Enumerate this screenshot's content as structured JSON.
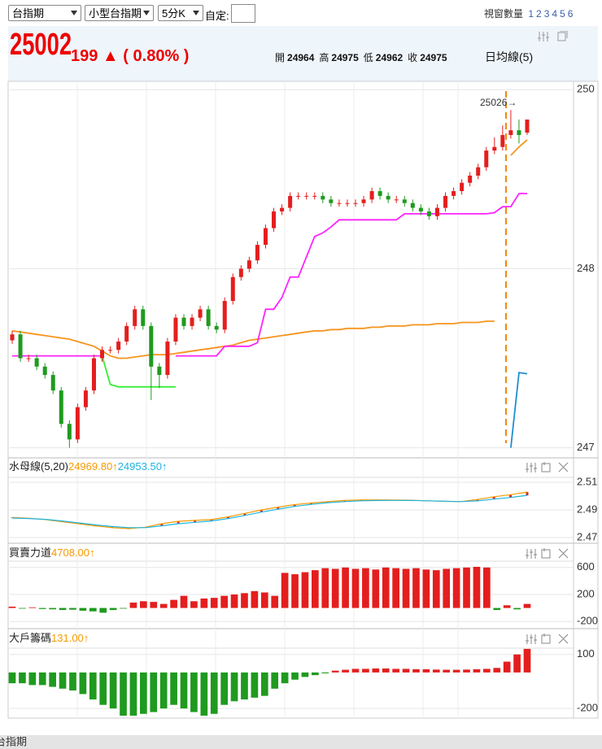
{
  "toolbar": {
    "selects": [
      "台指期",
      "小型台指期",
      "5分K"
    ],
    "custom_label": "自定:",
    "window_count_label": "視窗數量",
    "window_options": [
      1,
      2,
      3,
      4,
      5,
      6
    ]
  },
  "quote": {
    "price": 25002,
    "change": "199 ▲",
    "change_pct": "( 0.80% )",
    "ohlc": [
      {
        "label": "開",
        "value": 24964
      },
      {
        "label": "高",
        "value": 24975
      },
      {
        "label": "低",
        "value": 24962
      },
      {
        "label": "收",
        "value": 24975
      }
    ],
    "ma_label": "日均線(5)"
  },
  "bottom_tab": "台指期",
  "chart_data": [
    {
      "type": "candlestick",
      "annotation": "25026→",
      "up_color": "#e41e1e",
      "down_color": "#1f9a1f",
      "grid": true,
      "ylim": [
        24697,
        25007
      ],
      "yticks": [
        {
          "value": 25000,
          "label": "250"
        },
        {
          "value": 24850,
          "label": "248"
        },
        {
          "value": 24700,
          "label": "247"
        }
      ],
      "candles": [
        [
          24790,
          24798,
          24787,
          24795
        ],
        [
          24795,
          24798,
          24772,
          24775
        ],
        [
          24775,
          24778,
          24772,
          24775
        ],
        [
          24775,
          24778,
          24765,
          24768
        ],
        [
          24768,
          24771,
          24758,
          24761
        ],
        [
          24761,
          24764,
          24745,
          24748
        ],
        [
          24748,
          24751,
          24717,
          24720
        ],
        [
          24720,
          24723,
          24700,
          24707
        ],
        [
          24707,
          24737,
          24704,
          24734
        ],
        [
          24734,
          24751,
          24731,
          24748
        ],
        [
          24748,
          24778,
          24745,
          24775
        ],
        [
          24775,
          24785,
          24772,
          24782
        ],
        [
          24782,
          24785,
          24779,
          24782
        ],
        [
          24782,
          24792,
          24779,
          24789
        ],
        [
          24789,
          24805,
          24786,
          24802
        ],
        [
          24802,
          24819,
          24799,
          24816
        ],
        [
          24816,
          24819,
          24799,
          24802
        ],
        [
          24802,
          24805,
          24740,
          24768
        ],
        [
          24768,
          24771,
          24750,
          24761
        ],
        [
          24761,
          24792,
          24758,
          24789
        ],
        [
          24789,
          24812,
          24786,
          24809
        ],
        [
          24809,
          24812,
          24799,
          24802
        ],
        [
          24802,
          24812,
          24799,
          24809
        ],
        [
          24809,
          24819,
          24806,
          24816
        ],
        [
          24816,
          24819,
          24799,
          24802
        ],
        [
          24802,
          24805,
          24796,
          24799
        ],
        [
          24799,
          24826,
          24796,
          24823
        ],
        [
          24823,
          24846,
          24820,
          24843
        ],
        [
          24843,
          24853,
          24840,
          24850
        ],
        [
          24850,
          24860,
          24847,
          24857
        ],
        [
          24857,
          24873,
          24854,
          24870
        ],
        [
          24870,
          24887,
          24867,
          24884
        ],
        [
          24884,
          24901,
          24881,
          24898
        ],
        [
          24898,
          24904,
          24895,
          24901
        ],
        [
          24901,
          24914,
          24898,
          24911
        ],
        [
          24911,
          24914,
          24908,
          24911
        ],
        [
          24911,
          24914,
          24908,
          24911
        ],
        [
          24911,
          24914,
          24908,
          24911
        ],
        [
          24911,
          24914,
          24905,
          24908
        ],
        [
          24908,
          24911,
          24902,
          24905
        ],
        [
          24905,
          24908,
          24902,
          24905
        ],
        [
          24905,
          24908,
          24902,
          24905
        ],
        [
          24905,
          24908,
          24902,
          24905
        ],
        [
          24905,
          24911,
          24902,
          24908
        ],
        [
          24908,
          24918,
          24905,
          24915
        ],
        [
          24915,
          24918,
          24908,
          24911
        ],
        [
          24911,
          24914,
          24905,
          24908
        ],
        [
          24908,
          24911,
          24905,
          24908
        ],
        [
          24908,
          24911,
          24902,
          24905
        ],
        [
          24905,
          24908,
          24898,
          24901
        ],
        [
          24901,
          24904,
          24895,
          24898
        ],
        [
          24898,
          24901,
          24891,
          24894
        ],
        [
          24894,
          24904,
          24891,
          24901
        ],
        [
          24901,
          24914,
          24898,
          24911
        ],
        [
          24911,
          24918,
          24908,
          24915
        ],
        [
          24915,
          24925,
          24912,
          24922
        ],
        [
          24922,
          24931,
          24919,
          24928
        ],
        [
          24928,
          24938,
          24925,
          24935
        ],
        [
          24935,
          24952,
          24932,
          24949
        ],
        [
          24949,
          24960,
          24946,
          24952
        ],
        [
          24952,
          24970,
          24949,
          24962
        ],
        [
          24962,
          24983,
          24959,
          24966
        ],
        [
          24966,
          24975,
          24955,
          24962
        ],
        [
          24964,
          24975,
          24962,
          24975
        ]
      ],
      "lines": [
        {
          "color": "#f7941d",
          "values": [
            24798,
            24797,
            24796,
            24795,
            24794,
            24793,
            24792,
            24791,
            24789,
            24787,
            24785,
            24781,
            24777,
            24775,
            24775,
            24776,
            24777,
            24778,
            24778,
            24778,
            24779,
            24780,
            24781,
            24782,
            24783,
            24784,
            24785,
            24786,
            24788,
            24790,
            24791,
            24792,
            24793,
            24794,
            24795,
            24796,
            24797,
            24798,
            24798,
            24799,
            24799,
            24800,
            24800,
            24800,
            24801,
            24801,
            24802,
            24802,
            24802,
            24803,
            24803,
            24803,
            24804,
            24804,
            24804,
            24805,
            24805,
            24805,
            24806,
            24806,
            null,
            24945,
            24952,
            24958
          ]
        },
        {
          "color": "#ff22ff",
          "values": [
            24777,
            24777,
            24777,
            24777,
            24777,
            24777,
            24777,
            24777,
            24777,
            24777,
            24777,
            24777,
            null,
            null,
            null,
            null,
            null,
            null,
            null,
            null,
            24777,
            24777,
            24777,
            24777,
            24777,
            24777,
            24785,
            24785,
            24785,
            24785,
            24788,
            24816,
            24816,
            24826,
            24843,
            24843,
            24860,
            24877,
            24880,
            24885,
            24891,
            24891,
            24891,
            24891,
            24891,
            24891,
            24891,
            24891,
            24896,
            24896,
            24896,
            24896,
            24896,
            24896,
            24896,
            24896,
            24896,
            24896,
            24896,
            24897,
            24902,
            24902,
            24913,
            24913
          ]
        },
        {
          "color": "#33ee33",
          "values": [
            null,
            null,
            null,
            null,
            null,
            null,
            null,
            null,
            null,
            null,
            null,
            24777,
            24753,
            24751,
            24751,
            24751,
            24751,
            24751,
            24751,
            24751,
            24751,
            null,
            null,
            null,
            null,
            null,
            null,
            null,
            null,
            null,
            null,
            null,
            null,
            null,
            null,
            null,
            null,
            null,
            null,
            null,
            null,
            null,
            null,
            null,
            null,
            null,
            null,
            null,
            null,
            null,
            null,
            null,
            null,
            null,
            null,
            null,
            null,
            null,
            null,
            null,
            null,
            null,
            null,
            null
          ]
        },
        {
          "color": "#1f8fd0",
          "values": [
            null,
            null,
            null,
            null,
            null,
            null,
            null,
            null,
            null,
            null,
            null,
            null,
            null,
            null,
            null,
            null,
            null,
            null,
            null,
            null,
            null,
            null,
            null,
            null,
            null,
            null,
            null,
            null,
            null,
            null,
            null,
            null,
            null,
            null,
            null,
            null,
            null,
            null,
            null,
            null,
            null,
            null,
            null,
            null,
            null,
            null,
            null,
            null,
            null,
            null,
            null,
            null,
            null,
            null,
            null,
            null,
            null,
            null,
            null,
            null,
            null,
            24700,
            24763,
            24762
          ]
        }
      ]
    },
    {
      "type": "ribbon",
      "title": "水母線(5,20)",
      "up_color": "#e41e1e",
      "down_color": "#1f9a1f",
      "grid": true,
      "ylim": [
        24665,
        25135
      ],
      "yticks": [
        {
          "value": 25100,
          "label": "2.51"
        },
        {
          "value": 24900,
          "label": "2.49"
        },
        {
          "value": 24700,
          "label": "2.47"
        }
      ],
      "series": [
        {
          "name": "24969.80↑",
          "color": "#f79a00",
          "values": [
            24845,
            24840,
            24830,
            24815,
            24800,
            24785,
            24772,
            24765,
            24775,
            24800,
            24818,
            24824,
            24830,
            24850,
            24875,
            24900,
            24920,
            24938,
            24950,
            24960,
            24968,
            24972,
            24972,
            24971,
            24970,
            24966,
            24962,
            24960,
            24975,
            24995,
            25010,
            25029
          ]
        },
        {
          "name": "24953.50↑",
          "color": "#1fb4e0",
          "values": [
            24841,
            24838,
            24832,
            24820,
            24806,
            24792,
            24780,
            24772,
            24772,
            24785,
            24800,
            24810,
            24820,
            24838,
            24860,
            24884,
            24905,
            24925,
            24940,
            24952,
            24960,
            24966,
            24968,
            24969,
            24968,
            24966,
            24962,
            24960,
            24965,
            24978,
            24990,
            25005
          ]
        }
      ]
    },
    {
      "type": "bar",
      "title": "買賣力道",
      "value_label": "4708.00↑",
      "up_color": "#e41e1e",
      "down_color": "#1f9a1f",
      "grid": true,
      "ylim": [
        -2700,
        6700
      ],
      "yticks": [
        {
          "value": 6000,
          "label": "600"
        },
        {
          "value": 2000,
          "label": "200"
        },
        {
          "value": -2000,
          "label": "-200"
        }
      ],
      "values": [
        200,
        -100,
        100,
        -150,
        -200,
        -300,
        -250,
        -400,
        -500,
        -700,
        -300,
        -100,
        800,
        1000,
        900,
        600,
        1200,
        1800,
        1000,
        1400,
        1500,
        1800,
        2000,
        2200,
        2500,
        2300,
        1800,
        5200,
        5000,
        5300,
        5600,
        5900,
        5800,
        6000,
        5800,
        5900,
        5700,
        6000,
        5900,
        5800,
        5900,
        5700,
        5600,
        5800,
        5900,
        6000,
        6100,
        6000,
        -300,
        400,
        -200,
        600
      ]
    },
    {
      "type": "bar",
      "title": "大戶籌碼",
      "value_label": "131.00↑",
      "up_color": "#e41e1e",
      "down_color": "#1f9a1f",
      "grid": true,
      "ylim": [
        -240,
        135
      ],
      "yticks": [
        100,
        -200
      ],
      "values": [
        -60,
        -60,
        -70,
        -70,
        -80,
        -90,
        -100,
        -120,
        -150,
        -180,
        -200,
        -240,
        -240,
        -230,
        -220,
        -200,
        -180,
        -200,
        -220,
        -240,
        -230,
        -180,
        -160,
        -150,
        -140,
        -130,
        -90,
        -60,
        -40,
        -25,
        -15,
        -5,
        10,
        15,
        20,
        20,
        22,
        22,
        20,
        20,
        18,
        18,
        16,
        15,
        15,
        16,
        18,
        20,
        25,
        60,
        100,
        131
      ]
    }
  ]
}
